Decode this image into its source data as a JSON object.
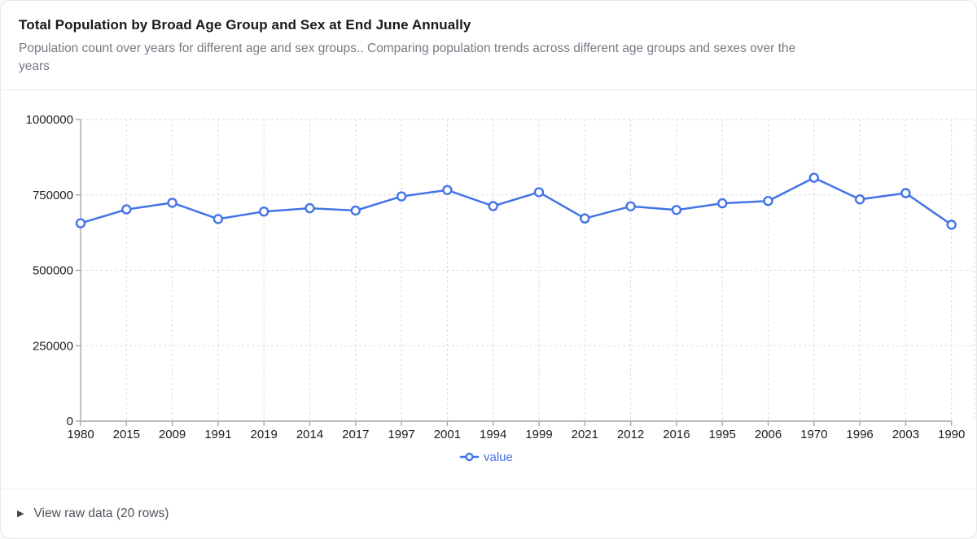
{
  "header": {
    "title": "Total Population by Broad Age Group and Sex at End June Annually",
    "subtitle": "Population count over years for different age and sex groups.. Comparing population trends across different age groups and sexes over the years"
  },
  "colors": {
    "accent": "#4373e8",
    "grid": "#d9dade",
    "axis": "#a4a8ae",
    "tick_label": "#1b1e24"
  },
  "chart_data": {
    "type": "line",
    "title": "Total Population by Broad Age Group and Sex at End June Annually",
    "categories": [
      "1980",
      "2015",
      "2009",
      "1991",
      "2019",
      "2014",
      "2017",
      "1997",
      "2001",
      "1994",
      "1999",
      "2021",
      "2012",
      "2016",
      "1995",
      "2006",
      "1970",
      "1996",
      "2003",
      "1990"
    ],
    "series": [
      {
        "name": "value",
        "values": [
          656000,
          702000,
          724000,
          670000,
          695000,
          706000,
          698000,
          745000,
          766000,
          713000,
          759000,
          672000,
          712000,
          700000,
          722000,
          730000,
          807000,
          735000,
          756000,
          651000
        ]
      }
    ],
    "xlabel": "",
    "ylabel": "",
    "ylim": [
      0,
      1000000
    ],
    "yticks": [
      0,
      250000,
      500000,
      750000,
      1000000
    ],
    "grid": true,
    "legend_position": "bottom",
    "marker": "open-circle"
  },
  "legend": {
    "label": "value"
  },
  "footer": {
    "toggle_label": "View raw data (20 rows)"
  },
  "icons": {
    "expander": "▶"
  }
}
